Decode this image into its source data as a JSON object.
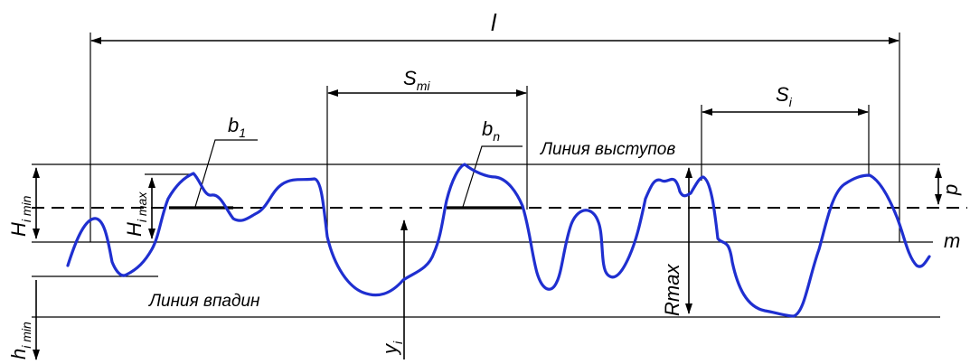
{
  "labels": {
    "l": "l",
    "s_mi_main": "S",
    "s_mi_sub": "mi",
    "s_i_main": "S",
    "s_i_sub": "i",
    "b1_main": "b",
    "b1_sub": "1",
    "bn_main": "b",
    "bn_sub": "n",
    "peak_line": "Линия выступов",
    "valley_line": "Линия впадин",
    "m": "m",
    "p": "p",
    "rmax": "Rmax",
    "y_i_main": "y",
    "y_i_sub": "i",
    "H_imin_main": "H",
    "H_imin_sub": "i min",
    "H_imax_main": "H",
    "H_imax_sub": "i max",
    "h_imin_main": "h",
    "h_imin_sub": "i min"
  },
  "colors": {
    "profile": "#1f2fd0",
    "lines": "#000000"
  }
}
